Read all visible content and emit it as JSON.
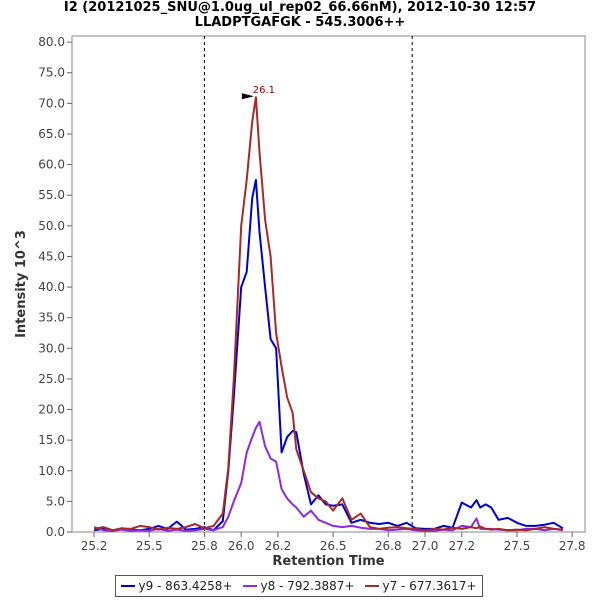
{
  "chart_data": {
    "type": "line",
    "title": "I2 (20121025_SNU@1.0ug_ul_rep02_66.66nM), 2012-10-30 12:57",
    "subtitle": "LLADPTGAFGK - 545.3006++",
    "xlabel": "Retention Time",
    "ylabel": "Intensity 10^3",
    "xlim": [
      25.08,
      27.87
    ],
    "ylim": [
      0,
      81
    ],
    "xticks": [
      25.2,
      25.5,
      25.8,
      26.0,
      26.2,
      26.5,
      26.8,
      27.0,
      27.2,
      27.5,
      27.8
    ],
    "yticks": [
      0.0,
      5.0,
      10.0,
      15.0,
      20.0,
      25.0,
      30.0,
      35.0,
      40.0,
      45.0,
      50.0,
      55.0,
      60.0,
      65.0,
      70.0,
      75.0,
      80.0
    ],
    "vlines": [
      25.8,
      26.93
    ],
    "peak_annotation": {
      "x": 26.08,
      "y": 71.0,
      "label": "26.1"
    },
    "legend_position": "bottom",
    "grid": false,
    "series": [
      {
        "name": "y9 - 863.4258+",
        "color": "#0000cc",
        "x": [
          25.2,
          25.25,
          25.3,
          25.35,
          25.4,
          25.45,
          25.5,
          25.55,
          25.6,
          25.65,
          25.7,
          25.75,
          25.8,
          25.85,
          25.9,
          25.93,
          25.96,
          26.0,
          26.03,
          26.06,
          26.08,
          26.1,
          26.13,
          26.16,
          26.19,
          26.22,
          26.25,
          26.28,
          26.3,
          26.34,
          26.38,
          26.42,
          26.46,
          26.5,
          26.55,
          26.6,
          26.65,
          26.7,
          26.75,
          26.8,
          26.85,
          26.9,
          26.95,
          27.0,
          27.05,
          27.1,
          27.15,
          27.2,
          27.25,
          27.28,
          27.3,
          27.33,
          27.36,
          27.4,
          27.45,
          27.5,
          27.55,
          27.6,
          27.65,
          27.7,
          27.75
        ],
        "y": [
          0.3,
          0.5,
          0.2,
          0.6,
          0.4,
          0.3,
          0.5,
          1.0,
          0.5,
          1.7,
          0.4,
          0.5,
          0.8,
          0.3,
          1.8,
          10.0,
          22.0,
          40.0,
          42.5,
          54.5,
          57.5,
          49.0,
          40.0,
          31.5,
          30.0,
          13.0,
          15.5,
          16.5,
          16.3,
          9.5,
          4.5,
          6.0,
          4.5,
          4.3,
          4.5,
          1.5,
          2.0,
          1.5,
          1.3,
          1.5,
          1.0,
          1.5,
          0.6,
          0.5,
          0.5,
          1.0,
          0.7,
          4.8,
          4.0,
          5.2,
          4.0,
          4.5,
          4.0,
          2.0,
          2.3,
          1.5,
          1.0,
          1.0,
          1.2,
          1.5,
          0.6
        ]
      },
      {
        "name": "y8 - 792.3887+",
        "color": "#8a2be2",
        "x": [
          25.2,
          25.25,
          25.3,
          25.35,
          25.4,
          25.45,
          25.5,
          25.55,
          25.6,
          25.65,
          25.7,
          25.75,
          25.8,
          25.85,
          25.9,
          25.93,
          25.96,
          26.0,
          26.03,
          26.06,
          26.08,
          26.1,
          26.13,
          26.16,
          26.19,
          26.22,
          26.25,
          26.28,
          26.3,
          26.34,
          26.38,
          26.42,
          26.46,
          26.5,
          26.55,
          26.6,
          26.65,
          26.7,
          26.75,
          26.8,
          26.85,
          26.9,
          26.95,
          27.0,
          27.05,
          27.1,
          27.15,
          27.2,
          27.25,
          27.28,
          27.3,
          27.33,
          27.36,
          27.4,
          27.45,
          27.5,
          27.55,
          27.6,
          27.65,
          27.7,
          27.75
        ],
        "y": [
          0.8,
          0.3,
          0.2,
          0.4,
          0.2,
          0.3,
          0.2,
          0.5,
          0.2,
          0.4,
          0.2,
          0.3,
          0.5,
          0.3,
          0.8,
          2.5,
          5.0,
          8.0,
          13.0,
          15.5,
          17.0,
          18.0,
          14.0,
          12.0,
          11.5,
          7.0,
          5.5,
          4.5,
          4.0,
          2.5,
          3.5,
          2.0,
          1.5,
          1.0,
          0.8,
          1.0,
          0.7,
          0.5,
          0.5,
          0.3,
          0.4,
          0.5,
          0.3,
          0.2,
          0.2,
          0.4,
          0.3,
          1.0,
          0.8,
          2.2,
          0.5,
          0.5,
          0.5,
          0.4,
          0.3,
          0.3,
          0.5,
          0.5,
          0.3,
          0.5,
          0.3
        ]
      },
      {
        "name": "y7 - 677.3617+",
        "color": "#a52a2a",
        "x": [
          25.2,
          25.25,
          25.3,
          25.35,
          25.4,
          25.45,
          25.5,
          25.55,
          25.6,
          25.65,
          25.7,
          25.75,
          25.8,
          25.85,
          25.9,
          25.93,
          25.96,
          26.0,
          26.03,
          26.06,
          26.08,
          26.1,
          26.13,
          26.16,
          26.19,
          26.22,
          26.25,
          26.28,
          26.3,
          26.34,
          26.38,
          26.42,
          26.46,
          26.5,
          26.55,
          26.6,
          26.65,
          26.7,
          26.75,
          26.8,
          26.85,
          26.9,
          26.95,
          27.0,
          27.05,
          27.1,
          27.15,
          27.2,
          27.25,
          27.28,
          27.3,
          27.33,
          27.36,
          27.4,
          27.45,
          27.5,
          27.55,
          27.6,
          27.65,
          27.7,
          27.75
        ],
        "y": [
          0.5,
          0.8,
          0.3,
          0.6,
          0.5,
          1.0,
          0.8,
          0.4,
          0.7,
          0.5,
          0.8,
          1.3,
          0.6,
          1.0,
          3.0,
          10.5,
          25.0,
          50.0,
          57.5,
          67.0,
          71.0,
          62.0,
          51.0,
          45.0,
          32.5,
          27.0,
          22.0,
          19.5,
          13.5,
          10.0,
          6.5,
          5.5,
          5.0,
          3.5,
          5.5,
          2.0,
          3.0,
          0.8,
          0.5,
          0.7,
          0.8,
          0.6,
          0.5,
          0.3,
          0.5,
          0.4,
          0.7,
          0.5,
          0.8,
          0.6,
          0.9,
          0.5,
          0.4,
          0.5,
          0.3,
          0.4,
          0.3,
          0.5,
          0.8,
          0.5,
          0.4
        ]
      }
    ]
  }
}
